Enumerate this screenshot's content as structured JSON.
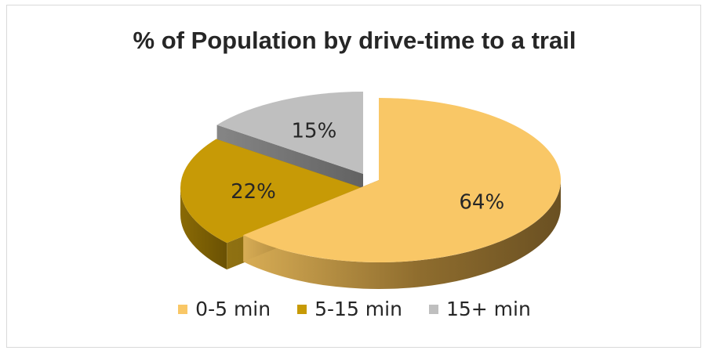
{
  "chart_data": {
    "type": "pie",
    "title": "% of Population by drive-time to a trail",
    "categories": [
      "0-5 min",
      "5-15 min",
      "15+ min"
    ],
    "values": [
      64,
      22,
      15
    ],
    "labels": [
      "64%",
      "22%",
      "15%"
    ],
    "colors": [
      "#F9C766",
      "#C79A06",
      "#BFBFBF"
    ],
    "legend_position": "bottom",
    "style": "3d-exploded"
  }
}
